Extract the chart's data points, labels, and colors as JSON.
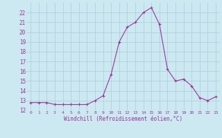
{
  "x": [
    0,
    1,
    2,
    3,
    4,
    5,
    6,
    7,
    8,
    9,
    10,
    11,
    12,
    13,
    14,
    15,
    16,
    17,
    18,
    19,
    20,
    21,
    22,
    23
  ],
  "y": [
    12.8,
    12.8,
    12.8,
    12.6,
    12.6,
    12.6,
    12.6,
    12.6,
    13.0,
    13.5,
    15.7,
    19.0,
    20.5,
    21.0,
    22.0,
    22.5,
    20.8,
    16.2,
    15.0,
    15.2,
    14.5,
    13.3,
    13.0,
    13.4
  ],
  "line_color": "#993399",
  "marker": "+",
  "bg_color": "#cce8f0",
  "grid_color": "#aaccdd",
  "xlabel": "Windchill (Refroidissement éolien,°C)",
  "xlabel_color": "#993399",
  "tick_color": "#993399",
  "xlim": [
    -0.5,
    23.5
  ],
  "ylim": [
    12,
    23
  ],
  "yticks": [
    12,
    13,
    14,
    15,
    16,
    17,
    18,
    19,
    20,
    21,
    22
  ],
  "xticks": [
    0,
    1,
    2,
    3,
    4,
    5,
    6,
    7,
    8,
    9,
    10,
    11,
    12,
    13,
    14,
    15,
    16,
    17,
    18,
    19,
    20,
    21,
    22,
    23
  ],
  "xtick_labels": [
    "0",
    "1",
    "2",
    "3",
    "4",
    "5",
    "6",
    "7",
    "8",
    "9",
    "10",
    "11",
    "12",
    "13",
    "14",
    "15",
    "16",
    "17",
    "18",
    "19",
    "20",
    "21",
    "22",
    "23"
  ]
}
